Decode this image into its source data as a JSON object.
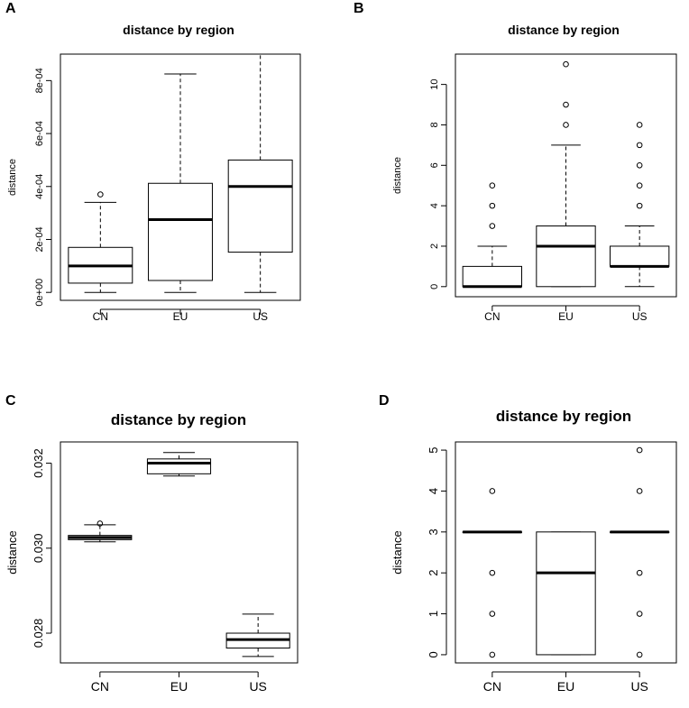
{
  "chart_data": [
    {
      "panel_label": "A",
      "type": "boxplot",
      "title": "distance by region",
      "xlabel": "",
      "ylabel": "distance",
      "categories": [
        "CN",
        "EU",
        "US"
      ],
      "ylim": [
        -3e-05,
        0.0009
      ],
      "yticks": [
        0,
        0.0002,
        0.0004,
        0.0006,
        0.0008
      ],
      "ytick_labels": [
        "0e+00",
        "2e-04",
        "4e-04",
        "6e-04",
        "8e-04"
      ],
      "boxes": [
        {
          "category": "CN",
          "whisker_low": 0,
          "q1": 3.5e-05,
          "median": 0.0001,
          "q3": 0.00017,
          "whisker_high": 0.00034,
          "outliers": [
            0.00037
          ]
        },
        {
          "category": "EU",
          "whisker_low": 0,
          "q1": 4.5e-05,
          "median": 0.000275,
          "q3": 0.000412,
          "whisker_high": 0.000825,
          "outliers": []
        },
        {
          "category": "US",
          "whisker_low": 0,
          "q1": 0.000152,
          "median": 0.0004,
          "q3": 0.0005,
          "whisker_high": 0.0009,
          "outliers": []
        }
      ]
    },
    {
      "panel_label": "B",
      "type": "boxplot",
      "title": "distance by region",
      "xlabel": "",
      "ylabel": "distance",
      "categories": [
        "CN",
        "EU",
        "US"
      ],
      "ylim": [
        -0.5,
        11.5
      ],
      "yticks": [
        0,
        2,
        4,
        6,
        8,
        10
      ],
      "ytick_labels": [
        "0",
        "2",
        "4",
        "6",
        "8",
        "10"
      ],
      "boxes": [
        {
          "category": "CN",
          "whisker_low": 0,
          "q1": 0,
          "median": 0,
          "q3": 1,
          "whisker_high": 2,
          "outliers": [
            3,
            4,
            5
          ]
        },
        {
          "category": "EU",
          "whisker_low": 0,
          "q1": 0,
          "median": 2,
          "q3": 3,
          "whisker_high": 7,
          "outliers": [
            8,
            9,
            11
          ]
        },
        {
          "category": "US",
          "whisker_low": 0,
          "q1": 1,
          "median": 1,
          "q3": 2,
          "whisker_high": 3,
          "outliers": [
            4,
            5,
            6,
            7,
            8
          ]
        }
      ]
    },
    {
      "panel_label": "C",
      "type": "boxplot",
      "title": "distance by region",
      "xlabel": "",
      "ylabel": "distance",
      "categories": [
        "CN",
        "EU",
        "US"
      ],
      "ylim": [
        0.0273,
        0.0325
      ],
      "yticks": [
        0.028,
        0.03,
        0.032
      ],
      "ytick_labels": [
        "0.028",
        "0.030",
        "0.032"
      ],
      "boxes": [
        {
          "category": "CN",
          "whisker_low": 0.03015,
          "q1": 0.0302,
          "median": 0.03025,
          "q3": 0.0303,
          "whisker_high": 0.03055,
          "outliers": [
            0.03058
          ]
        },
        {
          "category": "EU",
          "whisker_low": 0.0317,
          "q1": 0.03175,
          "median": 0.032,
          "q3": 0.0321,
          "whisker_high": 0.03225,
          "outliers": []
        },
        {
          "category": "US",
          "whisker_low": 0.02745,
          "q1": 0.02765,
          "median": 0.02785,
          "q3": 0.028,
          "whisker_high": 0.02845,
          "outliers": []
        }
      ]
    },
    {
      "panel_label": "D",
      "type": "boxplot",
      "title": "distance by region",
      "xlabel": "",
      "ylabel": "distance",
      "categories": [
        "CN",
        "EU",
        "US"
      ],
      "ylim": [
        -0.2,
        5.2
      ],
      "yticks": [
        0,
        1,
        2,
        3,
        4,
        5
      ],
      "ytick_labels": [
        "0",
        "1",
        "2",
        "3",
        "4",
        "5"
      ],
      "boxes": [
        {
          "category": "CN",
          "whisker_low": 3,
          "q1": 3,
          "median": 3,
          "q3": 3,
          "whisker_high": 3,
          "outliers": [
            0,
            1,
            2,
            4
          ]
        },
        {
          "category": "EU",
          "whisker_low": 0,
          "q1": 0,
          "median": 2,
          "q3": 3,
          "whisker_high": 3,
          "outliers": []
        },
        {
          "category": "US",
          "whisker_low": 3,
          "q1": 3,
          "median": 3,
          "q3": 3,
          "whisker_high": 3,
          "outliers": [
            0,
            1,
            2,
            4,
            5
          ]
        }
      ]
    }
  ]
}
